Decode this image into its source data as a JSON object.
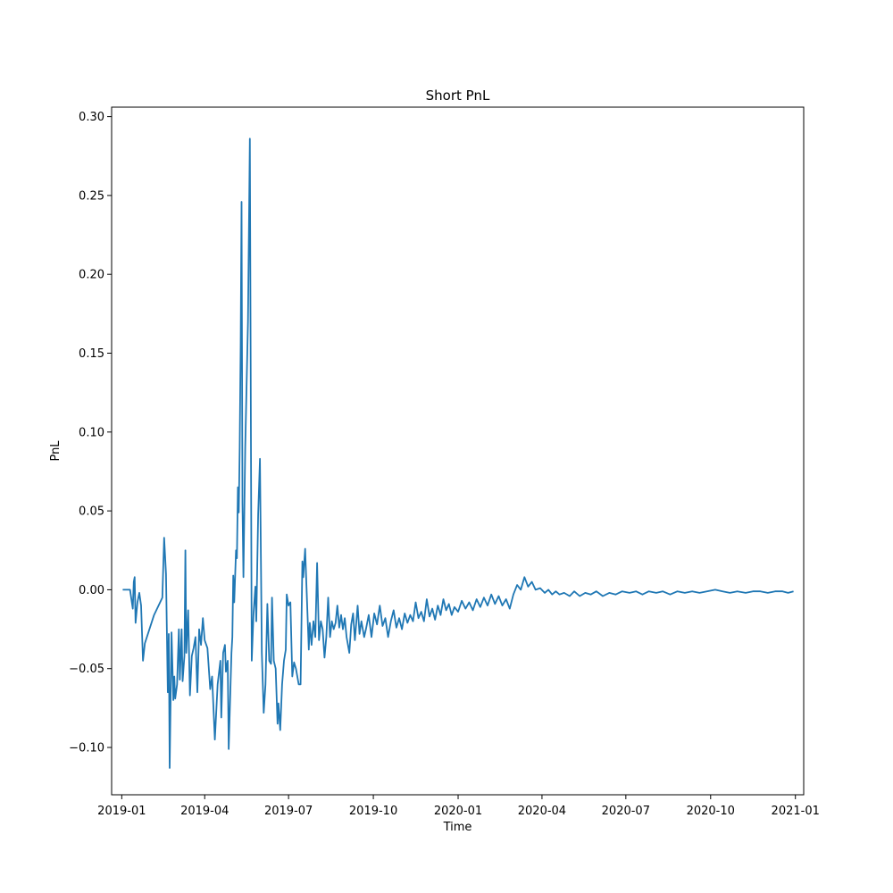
{
  "chart_data": {
    "type": "line",
    "title": "Short PnL",
    "xlabel": "Time",
    "ylabel": "PnL",
    "xlim": [
      "2018-12-21",
      "2021-01-10"
    ],
    "ylim": [
      -0.13,
      0.306
    ],
    "grid": false,
    "color": "#1f77b4",
    "xticks": [
      {
        "date": "2019-01-01",
        "label": "2019-01"
      },
      {
        "date": "2019-04-01",
        "label": "2019-04"
      },
      {
        "date": "2019-07-01",
        "label": "2019-07"
      },
      {
        "date": "2019-10-01",
        "label": "2019-10"
      },
      {
        "date": "2020-01-01",
        "label": "2020-01"
      },
      {
        "date": "2020-04-01",
        "label": "2020-04"
      },
      {
        "date": "2020-07-01",
        "label": "2020-07"
      },
      {
        "date": "2020-10-01",
        "label": "2020-10"
      },
      {
        "date": "2021-01-01",
        "label": "2021-01"
      }
    ],
    "yticks": [
      {
        "value": -0.1,
        "label": "−0.10"
      },
      {
        "value": -0.05,
        "label": "−0.05"
      },
      {
        "value": 0.0,
        "label": "0.00"
      },
      {
        "value": 0.05,
        "label": "0.05"
      },
      {
        "value": 0.1,
        "label": "0.10"
      },
      {
        "value": 0.15,
        "label": "0.15"
      },
      {
        "value": 0.2,
        "label": "0.20"
      },
      {
        "value": 0.25,
        "label": "0.25"
      },
      {
        "value": 0.3,
        "label": "0.30"
      }
    ],
    "series": [
      {
        "name": "",
        "points": [
          [
            "2019-01-02",
            0.0
          ],
          [
            "2019-01-10",
            0.0
          ],
          [
            "2019-01-13",
            -0.012
          ],
          [
            "2019-01-14",
            0.005
          ],
          [
            "2019-01-15",
            0.008
          ],
          [
            "2019-01-16",
            -0.021
          ],
          [
            "2019-01-18",
            -0.008
          ],
          [
            "2019-01-20",
            -0.002
          ],
          [
            "2019-01-22",
            -0.01
          ],
          [
            "2019-01-24",
            -0.045
          ],
          [
            "2019-01-26",
            -0.034
          ],
          [
            "2019-02-05",
            -0.016
          ],
          [
            "2019-02-14",
            -0.005
          ],
          [
            "2019-02-16",
            0.033
          ],
          [
            "2019-02-18",
            0.01
          ],
          [
            "2019-02-20",
            -0.065
          ],
          [
            "2019-02-21",
            -0.028
          ],
          [
            "2019-02-22",
            -0.113
          ],
          [
            "2019-02-24",
            -0.027
          ],
          [
            "2019-02-26",
            -0.07
          ],
          [
            "2019-02-27",
            -0.055
          ],
          [
            "2019-02-28",
            -0.069
          ],
          [
            "2019-03-02",
            -0.06
          ],
          [
            "2019-03-04",
            -0.025
          ],
          [
            "2019-03-05",
            -0.057
          ],
          [
            "2019-03-07",
            -0.025
          ],
          [
            "2019-03-08",
            -0.058
          ],
          [
            "2019-03-10",
            -0.042
          ],
          [
            "2019-03-11",
            0.025
          ],
          [
            "2019-03-12",
            -0.04
          ],
          [
            "2019-03-14",
            -0.013
          ],
          [
            "2019-03-16",
            -0.067
          ],
          [
            "2019-03-18",
            -0.042
          ],
          [
            "2019-03-20",
            -0.037
          ],
          [
            "2019-03-22",
            -0.03
          ],
          [
            "2019-03-24",
            -0.065
          ],
          [
            "2019-03-26",
            -0.025
          ],
          [
            "2019-03-28",
            -0.035
          ],
          [
            "2019-03-30",
            -0.018
          ],
          [
            "2019-04-01",
            -0.032
          ],
          [
            "2019-04-04",
            -0.037
          ],
          [
            "2019-04-07",
            -0.063
          ],
          [
            "2019-04-09",
            -0.055
          ],
          [
            "2019-04-12",
            -0.095
          ],
          [
            "2019-04-15",
            -0.06
          ],
          [
            "2019-04-18",
            -0.045
          ],
          [
            "2019-04-19",
            -0.081
          ],
          [
            "2019-04-21",
            -0.04
          ],
          [
            "2019-04-23",
            -0.035
          ],
          [
            "2019-04-24",
            -0.052
          ],
          [
            "2019-04-26",
            -0.045
          ],
          [
            "2019-04-27",
            -0.101
          ],
          [
            "2019-04-30",
            -0.04
          ],
          [
            "2019-05-01",
            -0.03
          ],
          [
            "2019-05-02",
            0.009
          ],
          [
            "2019-05-03",
            -0.008
          ],
          [
            "2019-05-05",
            0.025
          ],
          [
            "2019-05-06",
            0.02
          ],
          [
            "2019-05-07",
            0.065
          ],
          [
            "2019-05-08",
            0.049
          ],
          [
            "2019-05-09",
            0.09
          ],
          [
            "2019-05-10",
            0.155
          ],
          [
            "2019-05-11",
            0.246
          ],
          [
            "2019-05-12",
            0.055
          ],
          [
            "2019-05-13",
            0.008
          ],
          [
            "2019-05-15",
            0.09
          ],
          [
            "2019-05-18",
            0.17
          ],
          [
            "2019-05-20",
            0.286
          ],
          [
            "2019-05-22",
            -0.045
          ],
          [
            "2019-05-24",
            -0.015
          ],
          [
            "2019-05-26",
            0.002
          ],
          [
            "2019-05-27",
            -0.02
          ],
          [
            "2019-05-29",
            0.048
          ],
          [
            "2019-05-31",
            0.083
          ],
          [
            "2019-06-02",
            -0.04
          ],
          [
            "2019-06-04",
            -0.078
          ],
          [
            "2019-06-06",
            -0.06
          ],
          [
            "2019-06-08",
            -0.009
          ],
          [
            "2019-06-10",
            -0.045
          ],
          [
            "2019-06-12",
            -0.047
          ],
          [
            "2019-06-13",
            -0.005
          ],
          [
            "2019-06-15",
            -0.045
          ],
          [
            "2019-06-17",
            -0.05
          ],
          [
            "2019-06-19",
            -0.085
          ],
          [
            "2019-06-20",
            -0.072
          ],
          [
            "2019-06-22",
            -0.089
          ],
          [
            "2019-06-24",
            -0.06
          ],
          [
            "2019-06-26",
            -0.045
          ],
          [
            "2019-06-28",
            -0.038
          ],
          [
            "2019-06-29",
            -0.003
          ],
          [
            "2019-07-01",
            -0.01
          ],
          [
            "2019-07-03",
            -0.008
          ],
          [
            "2019-07-05",
            -0.055
          ],
          [
            "2019-07-07",
            -0.046
          ],
          [
            "2019-07-09",
            -0.05
          ],
          [
            "2019-07-12",
            -0.06
          ],
          [
            "2019-07-14",
            -0.06
          ],
          [
            "2019-07-16",
            0.018
          ],
          [
            "2019-07-17",
            0.008
          ],
          [
            "2019-07-19",
            0.026
          ],
          [
            "2019-07-20",
            0.01
          ],
          [
            "2019-07-23",
            -0.038
          ],
          [
            "2019-07-24",
            -0.021
          ],
          [
            "2019-07-26",
            -0.035
          ],
          [
            "2019-07-28",
            -0.02
          ],
          [
            "2019-07-30",
            -0.03
          ],
          [
            "2019-08-01",
            0.017
          ],
          [
            "2019-08-03",
            -0.032
          ],
          [
            "2019-08-05",
            -0.02
          ],
          [
            "2019-08-07",
            -0.025
          ],
          [
            "2019-08-09",
            -0.043
          ],
          [
            "2019-08-11",
            -0.03
          ],
          [
            "2019-08-13",
            -0.005
          ],
          [
            "2019-08-15",
            -0.03
          ],
          [
            "2019-08-17",
            -0.02
          ],
          [
            "2019-08-19",
            -0.025
          ],
          [
            "2019-08-21",
            -0.021
          ],
          [
            "2019-08-23",
            -0.01
          ],
          [
            "2019-08-25",
            -0.024
          ],
          [
            "2019-08-27",
            -0.016
          ],
          [
            "2019-08-29",
            -0.025
          ],
          [
            "2019-08-31",
            -0.018
          ],
          [
            "2019-09-02",
            -0.03
          ],
          [
            "2019-09-05",
            -0.04
          ],
          [
            "2019-09-07",
            -0.022
          ],
          [
            "2019-09-09",
            -0.015
          ],
          [
            "2019-09-11",
            -0.032
          ],
          [
            "2019-09-14",
            -0.01
          ],
          [
            "2019-09-16",
            -0.028
          ],
          [
            "2019-09-18",
            -0.02
          ],
          [
            "2019-09-21",
            -0.03
          ],
          [
            "2019-09-23",
            -0.025
          ],
          [
            "2019-09-26",
            -0.016
          ],
          [
            "2019-09-29",
            -0.03
          ],
          [
            "2019-10-02",
            -0.015
          ],
          [
            "2019-10-05",
            -0.022
          ],
          [
            "2019-10-08",
            -0.01
          ],
          [
            "2019-10-11",
            -0.023
          ],
          [
            "2019-10-14",
            -0.018
          ],
          [
            "2019-10-17",
            -0.03
          ],
          [
            "2019-10-20",
            -0.02
          ],
          [
            "2019-10-23",
            -0.013
          ],
          [
            "2019-10-26",
            -0.024
          ],
          [
            "2019-10-29",
            -0.018
          ],
          [
            "2019-11-01",
            -0.025
          ],
          [
            "2019-11-04",
            -0.015
          ],
          [
            "2019-11-07",
            -0.021
          ],
          [
            "2019-11-10",
            -0.016
          ],
          [
            "2019-11-13",
            -0.02
          ],
          [
            "2019-11-16",
            -0.008
          ],
          [
            "2019-11-19",
            -0.018
          ],
          [
            "2019-11-22",
            -0.014
          ],
          [
            "2019-11-25",
            -0.02
          ],
          [
            "2019-11-28",
            -0.006
          ],
          [
            "2019-12-01",
            -0.017
          ],
          [
            "2019-12-04",
            -0.012
          ],
          [
            "2019-12-07",
            -0.019
          ],
          [
            "2019-12-10",
            -0.01
          ],
          [
            "2019-12-13",
            -0.016
          ],
          [
            "2019-12-16",
            -0.006
          ],
          [
            "2019-12-19",
            -0.013
          ],
          [
            "2019-12-22",
            -0.009
          ],
          [
            "2019-12-25",
            -0.016
          ],
          [
            "2019-12-28",
            -0.011
          ],
          [
            "2020-01-01",
            -0.014
          ],
          [
            "2020-01-05",
            -0.007
          ],
          [
            "2020-01-09",
            -0.012
          ],
          [
            "2020-01-13",
            -0.008
          ],
          [
            "2020-01-17",
            -0.013
          ],
          [
            "2020-01-21",
            -0.006
          ],
          [
            "2020-01-25",
            -0.011
          ],
          [
            "2020-01-29",
            -0.005
          ],
          [
            "2020-02-02",
            -0.01
          ],
          [
            "2020-02-06",
            -0.003
          ],
          [
            "2020-02-10",
            -0.009
          ],
          [
            "2020-02-14",
            -0.004
          ],
          [
            "2020-02-18",
            -0.01
          ],
          [
            "2020-02-22",
            -0.006
          ],
          [
            "2020-02-26",
            -0.012
          ],
          [
            "2020-03-01",
            -0.003
          ],
          [
            "2020-03-05",
            0.003
          ],
          [
            "2020-03-09",
            0.0
          ],
          [
            "2020-03-13",
            0.008
          ],
          [
            "2020-03-17",
            0.002
          ],
          [
            "2020-03-21",
            0.005
          ],
          [
            "2020-03-25",
            0.0
          ],
          [
            "2020-03-30",
            0.001
          ],
          [
            "2020-04-04",
            -0.002
          ],
          [
            "2020-04-08",
            0.0
          ],
          [
            "2020-04-12",
            -0.003
          ],
          [
            "2020-04-16",
            -0.001
          ],
          [
            "2020-04-20",
            -0.003
          ],
          [
            "2020-04-25",
            -0.002
          ],
          [
            "2020-05-01",
            -0.004
          ],
          [
            "2020-05-06",
            -0.001
          ],
          [
            "2020-05-12",
            -0.004
          ],
          [
            "2020-05-18",
            -0.002
          ],
          [
            "2020-05-24",
            -0.003
          ],
          [
            "2020-05-30",
            -0.001
          ],
          [
            "2020-06-06",
            -0.004
          ],
          [
            "2020-06-13",
            -0.002
          ],
          [
            "2020-06-20",
            -0.003
          ],
          [
            "2020-06-27",
            -0.001
          ],
          [
            "2020-07-05",
            -0.002
          ],
          [
            "2020-07-12",
            -0.001
          ],
          [
            "2020-07-19",
            -0.003
          ],
          [
            "2020-07-26",
            -0.001
          ],
          [
            "2020-08-03",
            -0.002
          ],
          [
            "2020-08-10",
            -0.001
          ],
          [
            "2020-08-18",
            -0.003
          ],
          [
            "2020-08-26",
            -0.001
          ],
          [
            "2020-09-03",
            -0.002
          ],
          [
            "2020-09-11",
            -0.001
          ],
          [
            "2020-09-19",
            -0.002
          ],
          [
            "2020-09-27",
            -0.001
          ],
          [
            "2020-10-06",
            0.0
          ],
          [
            "2020-10-14",
            -0.001
          ],
          [
            "2020-10-22",
            -0.002
          ],
          [
            "2020-10-30",
            -0.001
          ],
          [
            "2020-11-08",
            -0.002
          ],
          [
            "2020-11-16",
            -0.001
          ],
          [
            "2020-11-24",
            -0.001
          ],
          [
            "2020-12-02",
            -0.002
          ],
          [
            "2020-12-10",
            -0.001
          ],
          [
            "2020-12-18",
            -0.001
          ],
          [
            "2020-12-24",
            -0.002
          ],
          [
            "2020-12-30",
            -0.001
          ]
        ]
      }
    ]
  }
}
